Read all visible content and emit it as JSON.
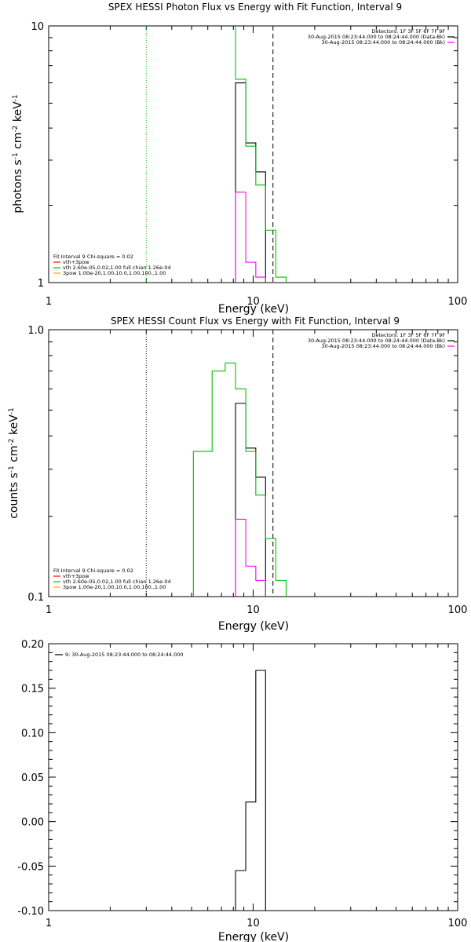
{
  "chart_data": [
    {
      "type": "line",
      "title": "SPEX HESSI Photon Flux vs Energy with Fit Function, Interval 9",
      "xlabel": "Energy (keV)",
      "ylabel": "photons s^-1 cm^-2 keV^-1",
      "x_scale": "log",
      "y_scale": "log",
      "xlim": [
        1,
        100
      ],
      "ylim": [
        1,
        10
      ],
      "x_ticks": [
        {
          "v": 1,
          "label": "1"
        },
        {
          "v": 10,
          "label": "10"
        },
        {
          "v": 100,
          "label": "100"
        }
      ],
      "y_ticks": [
        {
          "v": 1,
          "label": "1"
        },
        {
          "v": 10,
          "label": "10"
        }
      ],
      "vlines": [
        {
          "x": 3.0,
          "style": "dotted",
          "color": "#00c000"
        },
        {
          "x": 12.5,
          "style": "dashed",
          "color": "#000000"
        }
      ],
      "top_right_legend": [
        {
          "text": "Detectors: 1F 3F 5F 6F 7F 9F",
          "color": ""
        },
        {
          "text": "30-Aug-2015 08:23:44.000 to 08:24:44.000 (Data-Bk)",
          "color": "#000000"
        },
        {
          "text": "30-Aug-2015 08:23:44.000 to 08:24:44.000 (Bk)",
          "color": "#ff00ff"
        }
      ],
      "bottom_left_legend": [
        {
          "text": "Fit Interval  9     Chi-square = 0.02",
          "color": ""
        },
        {
          "text": "vth+3pow",
          "color": "#ff0000"
        },
        {
          "text": "vth  2.60e-05,0.02,1.00   full chian 1.26e-04",
          "color": "#00c000"
        },
        {
          "text": "3pow  1.00e-20,1.00,10.0,1.00,100.,1.00",
          "color": "#ffa000"
        }
      ],
      "series": [
        {
          "color": "#000000",
          "edges": [
            8.2,
            9.2,
            10.3,
            11.5
          ],
          "values": [
            6.0,
            3.5,
            2.7
          ]
        },
        {
          "color": "#00c000",
          "edges": [
            8.2,
            9.2,
            10.3,
            11.5,
            12.9,
            14.5
          ],
          "values": [
            6.2,
            3.4,
            2.4,
            1.6,
            1.05
          ],
          "lead_top": 10.5
        },
        {
          "color": "#ff00ff",
          "edges": [
            8.2,
            9.2,
            10.3,
            11.5
          ],
          "values": [
            2.25,
            1.2,
            1.05
          ]
        }
      ]
    },
    {
      "type": "line",
      "title": "SPEX HESSI Count Flux vs Energy with Fit Function, Interval 9",
      "xlabel": "Energy (keV)",
      "ylabel": "counts s^-1 cm^-2 keV^-1",
      "x_scale": "log",
      "y_scale": "log",
      "xlim": [
        1,
        100
      ],
      "ylim": [
        0.1,
        1.0
      ],
      "x_ticks": [
        {
          "v": 1,
          "label": "1"
        },
        {
          "v": 10,
          "label": "10"
        },
        {
          "v": 100,
          "label": "100"
        }
      ],
      "y_ticks": [
        {
          "v": 0.1,
          "label": "0.1"
        },
        {
          "v": 1.0,
          "label": "1.0"
        }
      ],
      "vlines": [
        {
          "x": 3.0,
          "style": "dotted",
          "color": "#000000"
        },
        {
          "x": 12.5,
          "style": "dashed",
          "color": "#000000"
        }
      ],
      "top_right_legend": [
        {
          "text": "Detectors: 1F 3F 5F 6F 7F 9F",
          "color": ""
        },
        {
          "text": "30-Aug-2015 08:23:44.000 to 08:24:44.000 (Data-Bk)",
          "color": "#000000"
        },
        {
          "text": "30-Aug-2015 08:23:44.000 to 08:24:44.000 (Bk)",
          "color": "#ff00ff"
        }
      ],
      "bottom_left_legend": [
        {
          "text": "Fit Interval  9     Chi-square = 0.02",
          "color": ""
        },
        {
          "text": "vth+3pow",
          "color": "#ff0000"
        },
        {
          "text": "vth  2.60e-05,0.02,1.00   full chian 1.26e-04",
          "color": "#00c000"
        },
        {
          "text": "3pow  1.00e-20,1.00,10.0,1.00,100.,1.00",
          "color": "#ffa000"
        }
      ],
      "series": [
        {
          "color": "#000000",
          "edges": [
            8.2,
            9.2,
            10.3,
            11.5
          ],
          "values": [
            0.53,
            0.36,
            0.28
          ]
        },
        {
          "color": "#00c000",
          "edges": [
            5.1,
            6.3,
            7.3,
            8.2,
            9.2,
            10.3,
            11.5,
            12.9,
            14.5
          ],
          "values": [
            0.35,
            0.7,
            0.75,
            0.6,
            0.35,
            0.24,
            0.165,
            0.115
          ]
        },
        {
          "color": "#ff00ff",
          "edges": [
            8.2,
            9.2,
            10.3,
            11.5
          ],
          "values": [
            0.195,
            0.13,
            0.115
          ]
        }
      ]
    },
    {
      "type": "line",
      "title": "",
      "xlabel": "Energy (keV)",
      "ylabel": "",
      "x_scale": "log",
      "y_scale": "linear",
      "xlim": [
        1,
        100
      ],
      "ylim": [
        -0.1,
        0.2
      ],
      "x_ticks": [
        {
          "v": 1,
          "label": "1"
        },
        {
          "v": 10,
          "label": "10"
        },
        {
          "v": 100,
          "label": "100"
        }
      ],
      "y_ticks": [
        {
          "v": -0.1,
          "label": "-0.10"
        },
        {
          "v": -0.05,
          "label": "-0.05"
        },
        {
          "v": 0.0,
          "label": "0.00"
        },
        {
          "v": 0.05,
          "label": "0.05"
        },
        {
          "v": 0.1,
          "label": "0.10"
        },
        {
          "v": 0.15,
          "label": "0.15"
        },
        {
          "v": 0.2,
          "label": "0.20"
        }
      ],
      "vlines": [],
      "top_right_legend": [],
      "bottom_left_legend": [],
      "top_left_legend": [
        {
          "text": "9: 30-Aug-2015 08:23:44.000 to 08:24:44.000",
          "color": "#000000"
        }
      ],
      "series": [
        {
          "color": "#000000",
          "edges": [
            8.2,
            9.2,
            10.3,
            11.5
          ],
          "values": [
            -0.055,
            0.022,
            0.17
          ]
        }
      ]
    }
  ]
}
